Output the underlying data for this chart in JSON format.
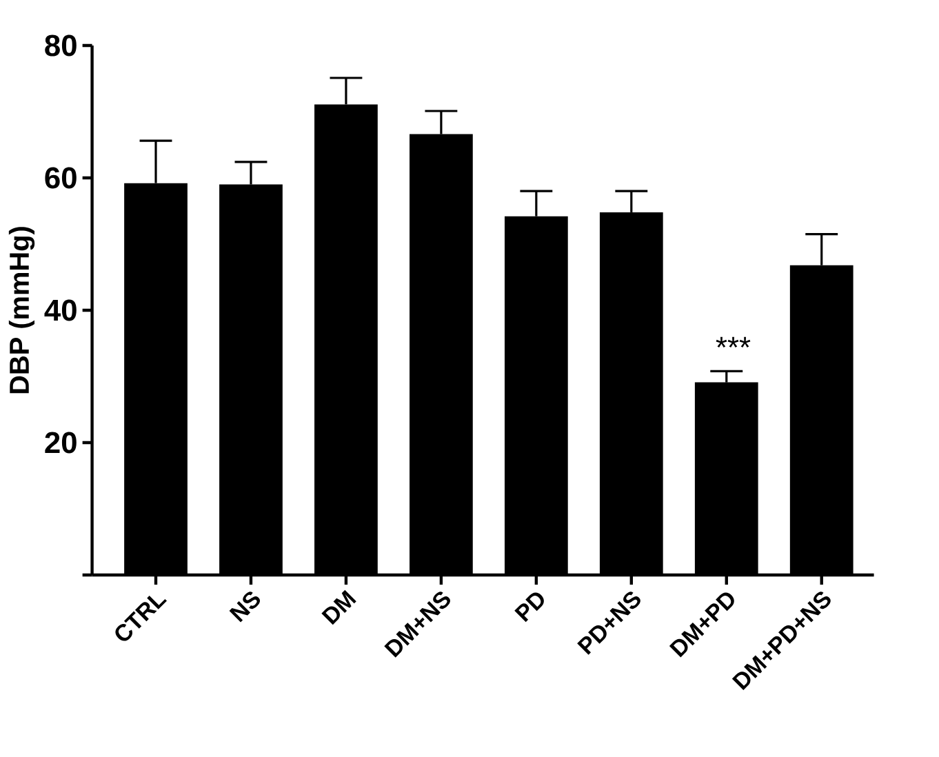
{
  "chart_data": {
    "type": "bar",
    "ylabel": "DBP (mmHg)",
    "categories": [
      "CTRL",
      "NS",
      "DM",
      "DM+NS",
      "PD",
      "PD+NS",
      "DM+PD",
      "DM+PD+NS"
    ],
    "values": [
      59.2,
      59.0,
      71.1,
      66.6,
      54.2,
      54.8,
      29.1,
      46.8
    ],
    "errors": [
      [
        59.2,
        65.6
      ],
      [
        59.0,
        62.4
      ],
      [
        71.1,
        75.1
      ],
      [
        66.6,
        70.1
      ],
      [
        54.2,
        58.0
      ],
      [
        54.8,
        58.0
      ],
      [
        29.1,
        30.8
      ],
      [
        46.8,
        51.5
      ]
    ],
    "color": "#000000",
    "ylim": [
      0,
      80
    ],
    "yticks": [
      {
        "value": 0,
        "label": null
      },
      20,
      40,
      60,
      80
    ],
    "annotations": [
      "***"
    ]
  }
}
